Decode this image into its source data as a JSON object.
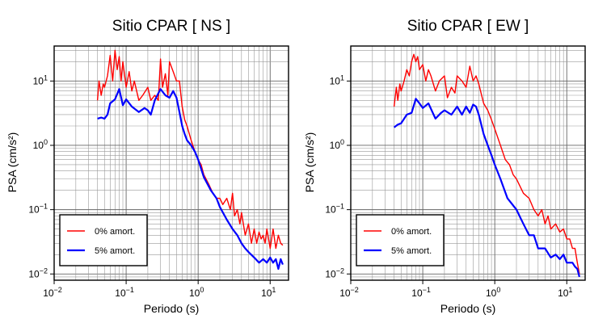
{
  "chart_data": [
    {
      "type": "line",
      "title": "Sitio CPAR [ NS ]",
      "xlabel": "Periodo (s)",
      "ylabel": "PSA (cm/s²)",
      "xscale": "log",
      "yscale": "log",
      "xlim": [
        0.01,
        18
      ],
      "ylim": [
        0.008,
        35
      ],
      "xticks": [
        {
          "v": 0.01,
          "base": "10",
          "exp": "−2"
        },
        {
          "v": 0.1,
          "base": "10",
          "exp": "−1"
        },
        {
          "v": 1,
          "base": "10",
          "exp": "0"
        },
        {
          "v": 10,
          "base": "10",
          "exp": "1"
        }
      ],
      "yticks": [
        {
          "v": 0.01,
          "base": "10",
          "exp": "−2"
        },
        {
          "v": 0.1,
          "base": "10",
          "exp": "−1"
        },
        {
          "v": 1,
          "base": "10",
          "exp": "0"
        },
        {
          "v": 10,
          "base": "10",
          "exp": "1"
        }
      ],
      "grid": true,
      "legend_position": "bottom-left",
      "series": [
        {
          "name": "0% amort.",
          "color": "#ff0000",
          "x": [
            0.04,
            0.042,
            0.045,
            0.048,
            0.05,
            0.055,
            0.06,
            0.065,
            0.07,
            0.075,
            0.08,
            0.085,
            0.09,
            0.1,
            0.11,
            0.12,
            0.13,
            0.15,
            0.17,
            0.2,
            0.22,
            0.25,
            0.28,
            0.3,
            0.32,
            0.35,
            0.38,
            0.4,
            0.45,
            0.5,
            0.55,
            0.6,
            0.65,
            0.7,
            0.8,
            0.9,
            1.0,
            1.1,
            1.2,
            1.4,
            1.6,
            1.8,
            2.0,
            2.2,
            2.5,
            2.8,
            3.0,
            3.2,
            3.5,
            3.8,
            4.0,
            4.5,
            5.0,
            5.5,
            6.0,
            6.5,
            7.0,
            7.5,
            8.0,
            8.5,
            9.0,
            10,
            11,
            12,
            13,
            14,
            15
          ],
          "y": [
            5,
            10,
            6,
            9,
            8,
            12,
            25,
            10,
            30,
            15,
            24,
            10,
            20,
            8,
            14,
            7,
            10,
            5,
            6,
            8,
            5,
            6,
            5,
            22,
            8,
            13,
            6,
            20,
            14,
            10,
            10,
            4,
            2.5,
            2.0,
            1.2,
            0.8,
            0.6,
            0.5,
            0.35,
            0.25,
            0.18,
            0.15,
            0.15,
            0.12,
            0.15,
            0.1,
            0.18,
            0.08,
            0.1,
            0.06,
            0.09,
            0.04,
            0.06,
            0.03,
            0.05,
            0.03,
            0.045,
            0.035,
            0.04,
            0.03,
            0.05,
            0.025,
            0.05,
            0.025,
            0.04,
            0.03,
            0.028
          ]
        },
        {
          "name": "5% amort.",
          "color": "#0000ff",
          "x": [
            0.04,
            0.045,
            0.05,
            0.055,
            0.06,
            0.07,
            0.08,
            0.09,
            0.1,
            0.12,
            0.15,
            0.18,
            0.2,
            0.22,
            0.25,
            0.3,
            0.35,
            0.4,
            0.45,
            0.5,
            0.55,
            0.6,
            0.65,
            0.7,
            0.8,
            0.9,
            1.0,
            1.2,
            1.5,
            1.8,
            2.0,
            2.5,
            3.0,
            3.5,
            4.0,
            4.5,
            5.0,
            6.0,
            7.0,
            8.0,
            9.0,
            10,
            11,
            12,
            13,
            14,
            15
          ],
          "y": [
            2.6,
            2.7,
            2.6,
            3.0,
            4.5,
            5.2,
            7.5,
            4.2,
            5.2,
            4.0,
            3.3,
            3.8,
            3.5,
            3.0,
            5.0,
            7.5,
            6.0,
            5.5,
            7.0,
            5.5,
            3.3,
            2.0,
            1.5,
            1.2,
            1.0,
            0.8,
            0.6,
            0.32,
            0.2,
            0.15,
            0.11,
            0.07,
            0.05,
            0.04,
            0.03,
            0.025,
            0.022,
            0.018,
            0.015,
            0.017,
            0.015,
            0.018,
            0.015,
            0.017,
            0.012,
            0.017,
            0.014
          ]
        }
      ]
    },
    {
      "type": "line",
      "title": "Sitio CPAR [ EW ]",
      "xlabel": "Periodo (s)",
      "ylabel": "PSA (cm/s²)",
      "xscale": "log",
      "yscale": "log",
      "xlim": [
        0.01,
        18
      ],
      "ylim": [
        0.008,
        35
      ],
      "xticks": [
        {
          "v": 0.01,
          "base": "10",
          "exp": "−2"
        },
        {
          "v": 0.1,
          "base": "10",
          "exp": "−1"
        },
        {
          "v": 1,
          "base": "10",
          "exp": "0"
        },
        {
          "v": 10,
          "base": "10",
          "exp": "1"
        }
      ],
      "yticks": [
        {
          "v": 0.01,
          "base": "10",
          "exp": "−2"
        },
        {
          "v": 0.1,
          "base": "10",
          "exp": "−1"
        },
        {
          "v": 1,
          "base": "10",
          "exp": "0"
        },
        {
          "v": 10,
          "base": "10",
          "exp": "1"
        }
      ],
      "grid": true,
      "legend_position": "bottom-left",
      "series": [
        {
          "name": "0% amort.",
          "color": "#ff0000",
          "x": [
            0.04,
            0.043,
            0.045,
            0.048,
            0.05,
            0.055,
            0.06,
            0.065,
            0.07,
            0.075,
            0.08,
            0.085,
            0.09,
            0.1,
            0.11,
            0.12,
            0.13,
            0.15,
            0.17,
            0.2,
            0.22,
            0.25,
            0.28,
            0.3,
            0.35,
            0.4,
            0.45,
            0.5,
            0.55,
            0.6,
            0.7,
            0.8,
            0.9,
            1.0,
            1.2,
            1.4,
            1.6,
            1.8,
            2.0,
            2.5,
            3.0,
            3.5,
            4.0,
            4.5,
            5.0,
            5.5,
            6.0,
            7.0,
            8.0,
            9.0,
            10,
            11,
            12,
            13,
            14,
            15
          ],
          "y": [
            4.0,
            8.0,
            5.0,
            9.0,
            7.0,
            10,
            15,
            12,
            20,
            26,
            20,
            24,
            15,
            18,
            10,
            15,
            12,
            7,
            10,
            12,
            5.5,
            8,
            6.5,
            12,
            10,
            8,
            17,
            10,
            12,
            9,
            4.5,
            3.5,
            2.5,
            1.8,
            1.0,
            0.6,
            0.5,
            0.35,
            0.3,
            0.18,
            0.15,
            0.1,
            0.08,
            0.1,
            0.06,
            0.08,
            0.05,
            0.06,
            0.045,
            0.05,
            0.035,
            0.035,
            0.025,
            0.025,
            0.015,
            0.01
          ]
        },
        {
          "name": "5% amort.",
          "color": "#0000ff",
          "x": [
            0.04,
            0.045,
            0.05,
            0.06,
            0.07,
            0.08,
            0.09,
            0.1,
            0.12,
            0.15,
            0.18,
            0.2,
            0.25,
            0.3,
            0.35,
            0.4,
            0.45,
            0.5,
            0.55,
            0.6,
            0.7,
            0.8,
            0.9,
            1.0,
            1.2,
            1.5,
            2.0,
            2.5,
            3.0,
            3.5,
            4.0,
            5.0,
            6.0,
            7.0,
            8.0,
            9.0,
            10,
            11,
            12,
            13,
            14,
            15
          ],
          "y": [
            1.9,
            2.1,
            2.2,
            3.0,
            3.2,
            5.3,
            4.5,
            3.8,
            4.5,
            2.6,
            3.2,
            3.5,
            3.0,
            4.0,
            3.0,
            4.0,
            3.2,
            4.3,
            4.0,
            3.0,
            1.5,
            1.0,
            0.7,
            0.5,
            0.3,
            0.15,
            0.1,
            0.06,
            0.04,
            0.04,
            0.025,
            0.025,
            0.018,
            0.02,
            0.017,
            0.02,
            0.015,
            0.015,
            0.015,
            0.013,
            0.012,
            0.009
          ]
        }
      ]
    }
  ]
}
